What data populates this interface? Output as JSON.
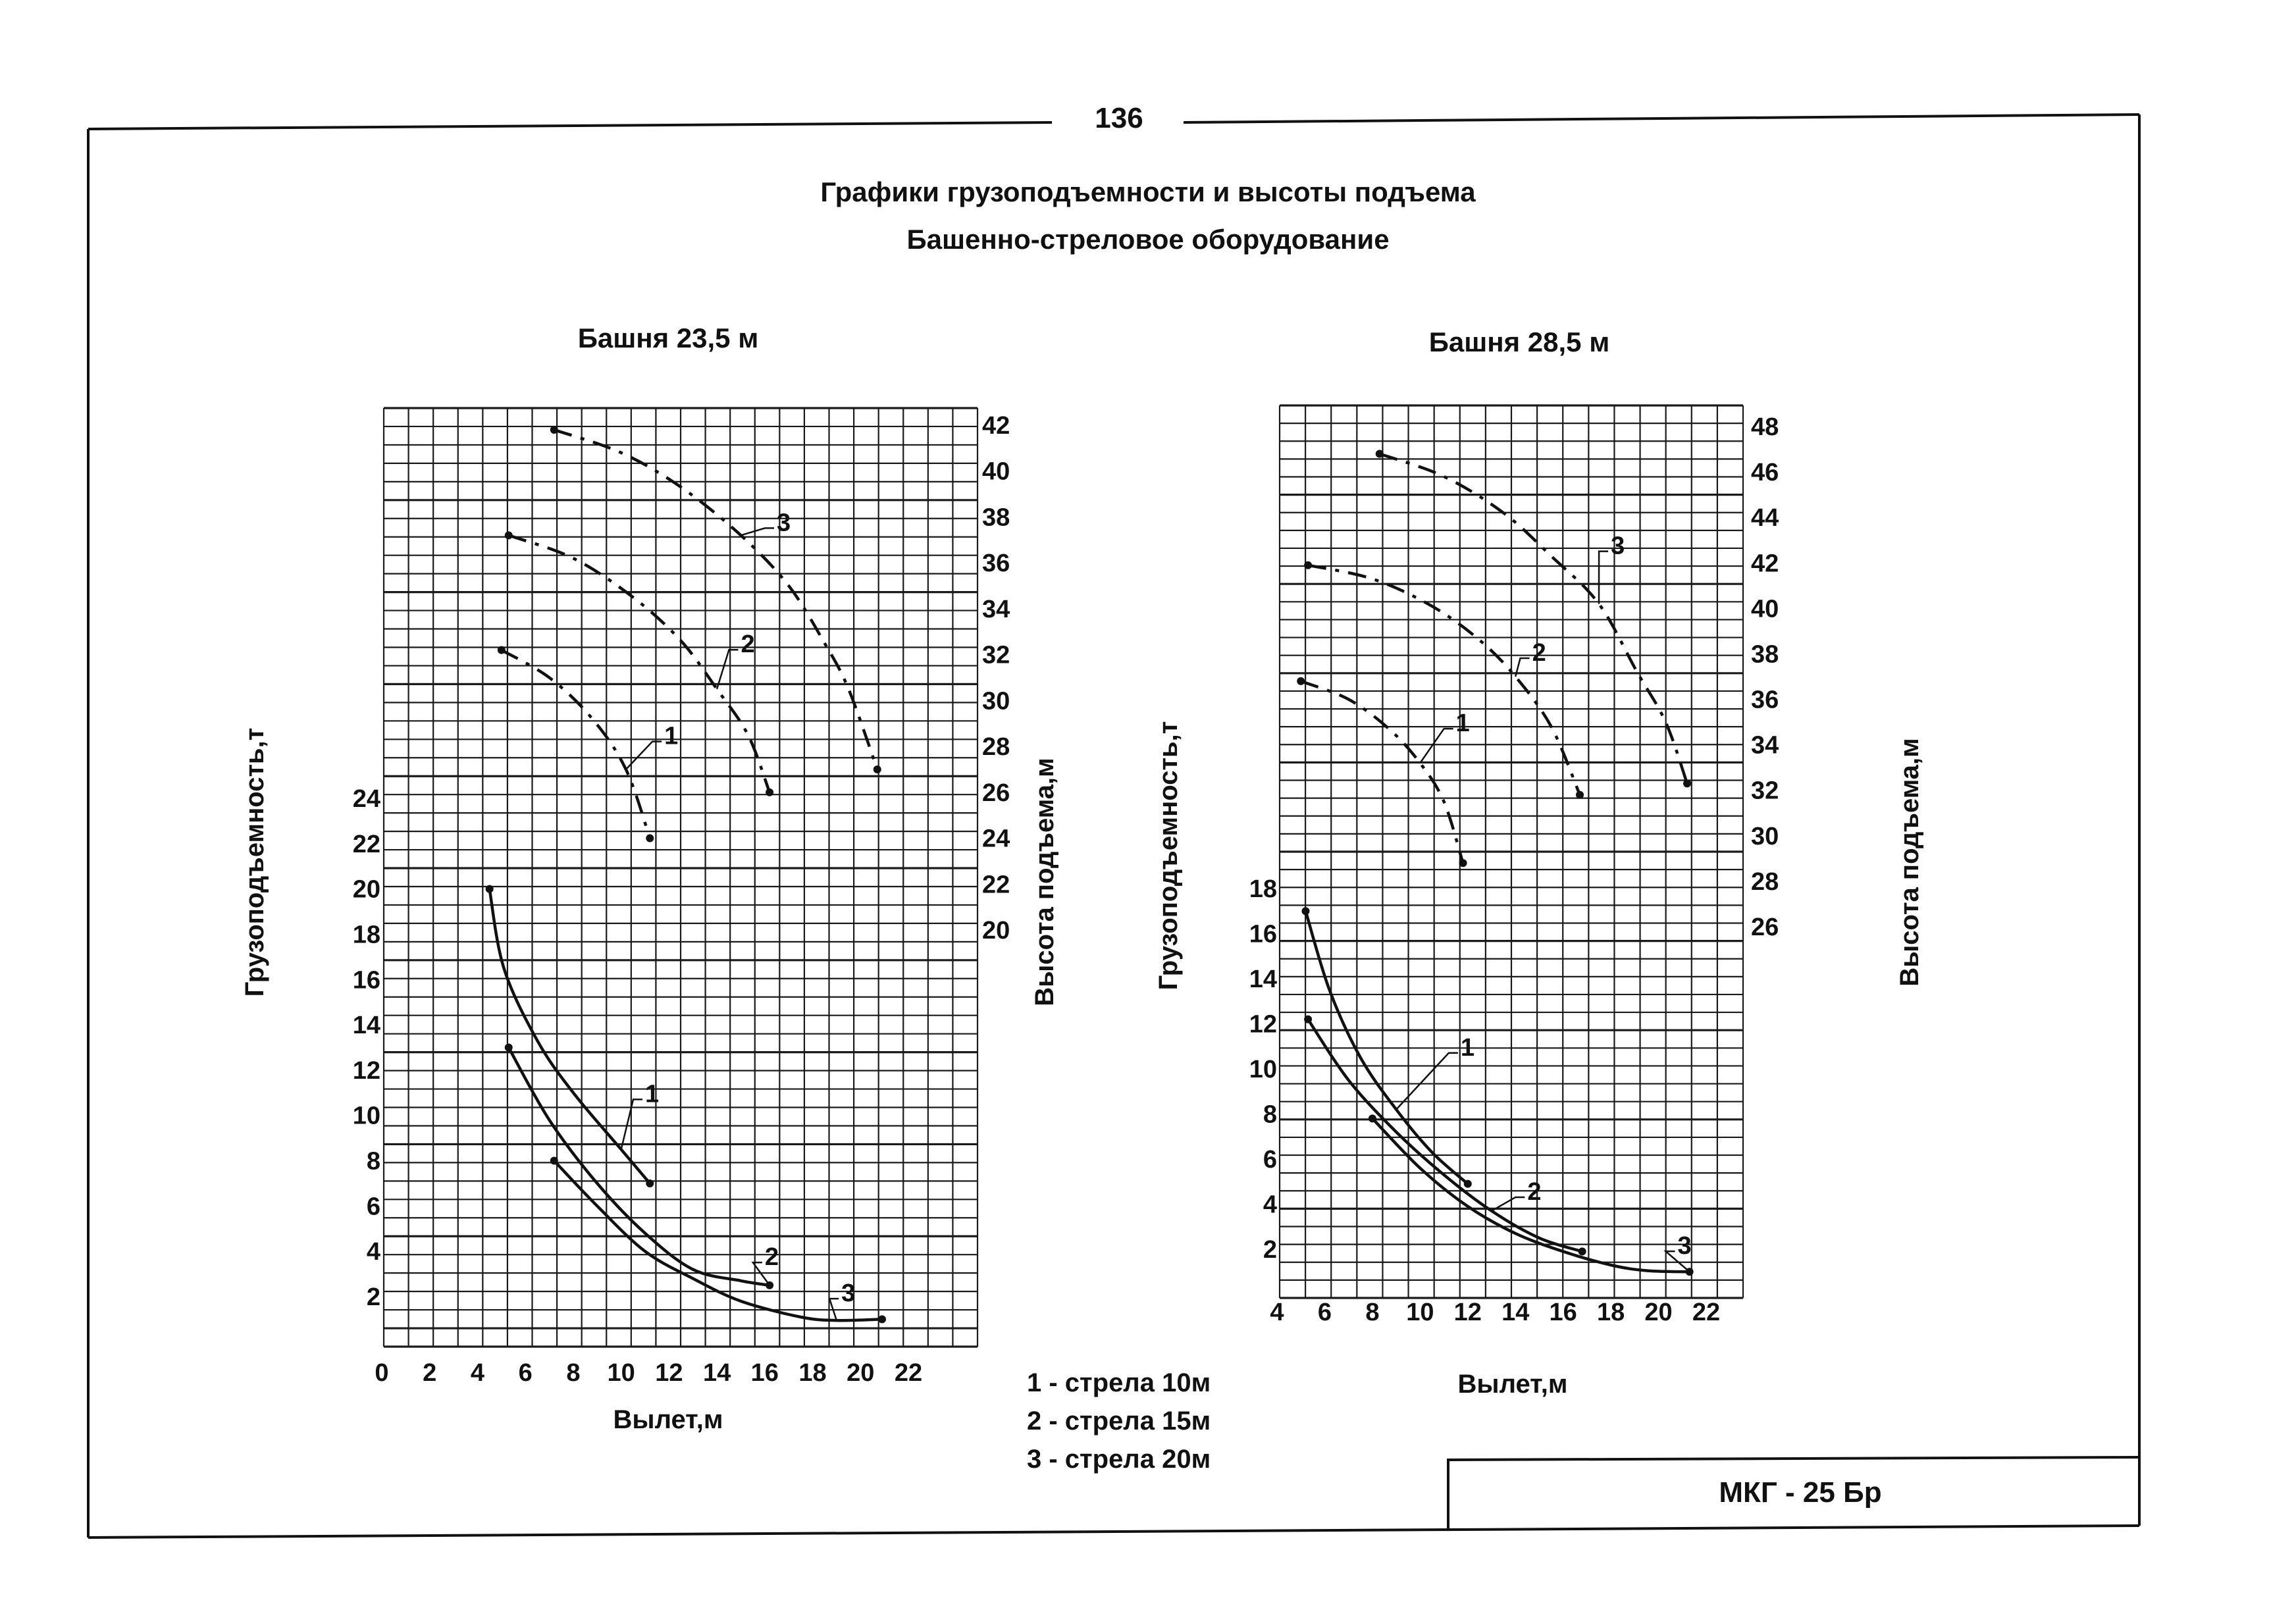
{
  "page": {
    "number": "136",
    "title": "Графики грузоподъемности и высоты подъема",
    "subtitle": "Башенно-стреловое оборудование",
    "legend": [
      "1 - стрела 10м",
      "2 - стрела 15м",
      "3 - стрела 20м"
    ],
    "stamp": "МКГ - 25 Бр"
  },
  "colors": {
    "ink": "#111111",
    "paper": "#ffffff"
  },
  "chart_data": [
    {
      "type": "line",
      "title": "Башня 23,5 м",
      "xlabel": "Вылет,м",
      "ylabel_left": "Грузоподъемность,т",
      "ylabel_right": "Высота подъема,м",
      "grid": true,
      "x_ticks": [
        0,
        2,
        4,
        6,
        8,
        10,
        12,
        14,
        16,
        18,
        20,
        22
      ],
      "capacity_ticks": [
        2,
        4,
        6,
        8,
        10,
        12,
        14,
        16,
        18,
        20,
        22,
        24
      ],
      "height_ticks": [
        20,
        22,
        24,
        26,
        28,
        30,
        32,
        34,
        36,
        38,
        40,
        42
      ],
      "capacity_series": [
        {
          "name": "1",
          "line": "solid",
          "label_x": 11,
          "label_y": 11,
          "points": [
            [
              4.5,
              20
            ],
            [
              5.1,
              16.5
            ],
            [
              6.5,
              13.3
            ],
            [
              8,
              11
            ],
            [
              10,
              8.5
            ],
            [
              11.2,
              7
            ]
          ]
        },
        {
          "name": "2",
          "line": "solid",
          "label_x": 16,
          "label_y": 3.8,
          "points": [
            [
              5.3,
              13
            ],
            [
              7,
              9.8
            ],
            [
              9,
              7
            ],
            [
              11,
              4.8
            ],
            [
              13,
              3.2
            ],
            [
              15,
              2.7
            ],
            [
              16.2,
              2.5
            ]
          ]
        },
        {
          "name": "3",
          "line": "solid",
          "label_x": 19.2,
          "label_y": 2.2,
          "points": [
            [
              7.2,
              8
            ],
            [
              9,
              6
            ],
            [
              11,
              4
            ],
            [
              13,
              2.8
            ],
            [
              15,
              1.8
            ],
            [
              17.5,
              1.1
            ],
            [
              19,
              0.95
            ],
            [
              20.9,
              1
            ]
          ]
        }
      ],
      "height_series": [
        {
          "name": "1",
          "line": "dashed",
          "label_x": 11.8,
          "label_y": 28.5,
          "points": [
            [
              5,
              32.2
            ],
            [
              7,
              31
            ],
            [
              8.8,
              29.2
            ],
            [
              10.2,
              27
            ],
            [
              11.2,
              24
            ]
          ]
        },
        {
          "name": "2",
          "line": "dashed",
          "label_x": 15,
          "label_y": 32.5,
          "points": [
            [
              5.3,
              37.2
            ],
            [
              8,
              36.2
            ],
            [
              10.5,
              34.5
            ],
            [
              12.5,
              32.6
            ],
            [
              14,
              30.5
            ],
            [
              15.3,
              28.5
            ],
            [
              16.2,
              26
            ]
          ]
        },
        {
          "name": "3",
          "line": "dashed",
          "label_x": 16.5,
          "label_y": 37.8,
          "points": [
            [
              7.2,
              41.8
            ],
            [
              10,
              40.8
            ],
            [
              12.5,
              39.3
            ],
            [
              15,
              37.2
            ],
            [
              17,
              35
            ],
            [
              18.5,
              32.5
            ],
            [
              19.5,
              30.5
            ],
            [
              20.7,
              27
            ]
          ]
        }
      ]
    },
    {
      "type": "line",
      "title": "Башня 28,5 м",
      "xlabel": "Вылет,м",
      "ylabel_left": "Грузоподъемность,т",
      "ylabel_right": "Высота подъема,м",
      "grid": true,
      "x_ticks": [
        4,
        6,
        8,
        10,
        12,
        14,
        16,
        18,
        20,
        22
      ],
      "capacity_ticks": [
        2,
        4,
        6,
        8,
        10,
        12,
        14,
        16,
        18
      ],
      "height_ticks": [
        26,
        28,
        30,
        32,
        34,
        36,
        38,
        40,
        42,
        44,
        46,
        48
      ],
      "capacity_series": [
        {
          "name": "1",
          "line": "solid",
          "label_x": 11.7,
          "label_y": 11,
          "points": [
            [
              5.2,
              17
            ],
            [
              6.2,
              13.5
            ],
            [
              7.5,
              10.5
            ],
            [
              9,
              8.2
            ],
            [
              10.5,
              6.3
            ],
            [
              12,
              4.9
            ]
          ]
        },
        {
          "name": "2",
          "line": "solid",
          "label_x": 14.5,
          "label_y": 4.6,
          "points": [
            [
              5.3,
              12.2
            ],
            [
              7,
              9.5
            ],
            [
              9,
              7.2
            ],
            [
              11,
              5.3
            ],
            [
              13,
              3.7
            ],
            [
              15,
              2.5
            ],
            [
              16.8,
              1.9
            ]
          ]
        },
        {
          "name": "3",
          "line": "solid",
          "label_x": 20.8,
          "label_y": 2.2,
          "points": [
            [
              8,
              7.8
            ],
            [
              10,
              5.6
            ],
            [
              12,
              3.9
            ],
            [
              14,
              2.7
            ],
            [
              16,
              1.9
            ],
            [
              18,
              1.3
            ],
            [
              19.5,
              1.05
            ],
            [
              21.3,
              1
            ]
          ]
        }
      ],
      "height_series": [
        {
          "name": "1",
          "line": "dashed",
          "label_x": 11.5,
          "label_y": 35,
          "points": [
            [
              5,
              36.8
            ],
            [
              7,
              36
            ],
            [
              8.7,
              34.7
            ],
            [
              10,
              33.2
            ],
            [
              11,
              31.5
            ],
            [
              11.8,
              28.8
            ]
          ]
        },
        {
          "name": "2",
          "line": "dashed",
          "label_x": 14.7,
          "label_y": 38.1,
          "points": [
            [
              5.3,
              41.9
            ],
            [
              8,
              41.3
            ],
            [
              10.5,
              40.1
            ],
            [
              12.5,
              38.6
            ],
            [
              14,
              37
            ],
            [
              15.5,
              34.8
            ],
            [
              16.7,
              31.8
            ]
          ]
        },
        {
          "name": "3",
          "line": "dashed",
          "label_x": 18,
          "label_y": 42.8,
          "points": [
            [
              8.3,
              46.8
            ],
            [
              11,
              45.8
            ],
            [
              13.5,
              44.2
            ],
            [
              15.5,
              42.3
            ],
            [
              17.5,
              40.2
            ],
            [
              19.1,
              37.2
            ],
            [
              20.3,
              35
            ],
            [
              21.2,
              32.3
            ]
          ]
        }
      ]
    }
  ]
}
